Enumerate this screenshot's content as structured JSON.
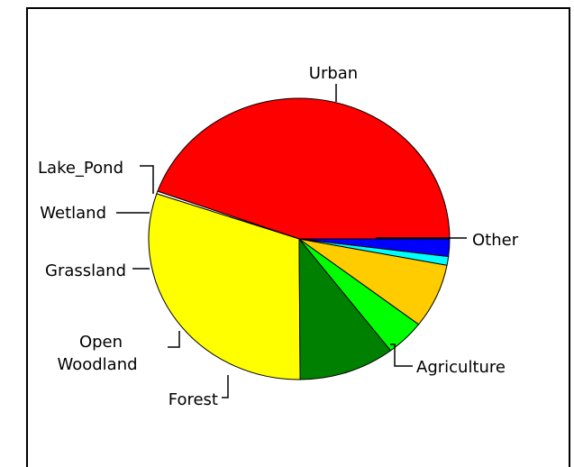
{
  "chart_data": {
    "type": "pie",
    "title": "",
    "categories": [
      "Urban",
      "Other",
      "Agriculture",
      "Forest",
      "Open Woodland",
      "Grassland",
      "Wetland",
      "Lake_Pond"
    ],
    "values": [
      44.5,
      0.3,
      30.3,
      10.3,
      4.2,
      7.4,
      1.0,
      2.0
    ],
    "unit": "percent (estimated)",
    "legend": "none (leader-line labels)",
    "start_angle_deg": 0,
    "direction": "counterclockwise from 3 o'clock",
    "colors": [
      "#ff0000",
      "#ffffff",
      "#ffff00",
      "#008000",
      "#00ff00",
      "#ffcc00",
      "#00ffff",
      "#0000ff"
    ],
    "labels": {
      "urban": "Urban",
      "other": "Other",
      "agriculture": "Agriculture",
      "forest": "Forest",
      "open_woodland_line1": "Open",
      "open_woodland_line2": "Woodland",
      "grassland": "Grassland",
      "wetland": "Wetland",
      "lake_pond": "Lake_Pond"
    }
  }
}
